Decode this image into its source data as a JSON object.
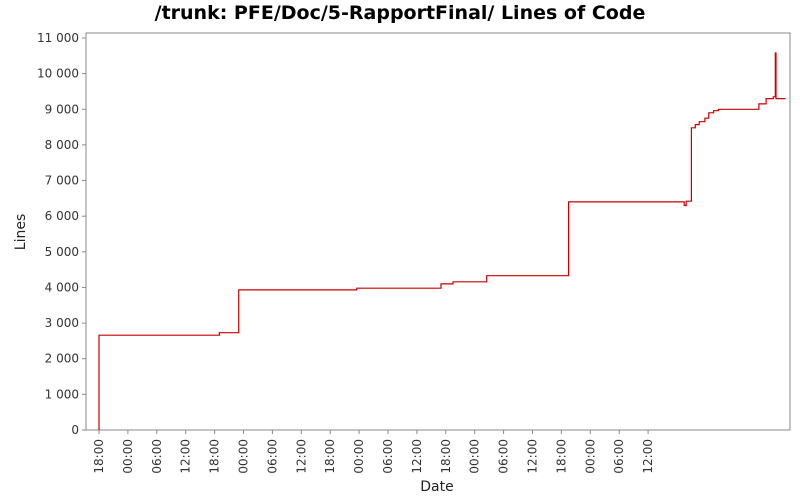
{
  "chart_data": {
    "type": "line",
    "title": "/trunk: PFE/Doc/5-RapportFinal/ Lines of Code",
    "xlabel": "Date",
    "ylabel": "Lines",
    "ylim": [
      0,
      11000
    ],
    "x_tick_labels": [
      "18:00",
      "00:00",
      "06:00",
      "12:00",
      "18:00",
      "00:00",
      "06:00",
      "12:00",
      "18:00",
      "00:00",
      "06:00",
      "12:00",
      "18:00",
      "00:00",
      "06:00",
      "12:00",
      "18:00",
      "00:00",
      "06:00",
      "12:00"
    ],
    "y_tick_labels": [
      "0",
      "1 000",
      "2 000",
      "3 000",
      "4 000",
      "5 000",
      "6 000",
      "7 000",
      "8 000",
      "9 000",
      "10 000",
      "11 000"
    ],
    "y_ticks": [
      0,
      1000,
      2000,
      3000,
      4000,
      5000,
      6000,
      7000,
      8000,
      9000,
      10000,
      11000
    ],
    "x_range_hours": [
      -1.5,
      115.7
    ],
    "grid": false,
    "line_color": "#cc0000",
    "series": [
      {
        "points": [
          [
            0.0,
            0
          ],
          [
            0.0,
            2660
          ],
          [
            25.0,
            2660
          ],
          [
            25.0,
            2730
          ],
          [
            29.0,
            2730
          ],
          [
            29.0,
            3930
          ],
          [
            53.5,
            3930
          ],
          [
            53.5,
            3980
          ],
          [
            71.0,
            3980
          ],
          [
            71.0,
            4100
          ],
          [
            73.5,
            4100
          ],
          [
            73.5,
            4160
          ],
          [
            80.5,
            4160
          ],
          [
            80.5,
            4330
          ],
          [
            97.5,
            4330
          ],
          [
            97.5,
            6400
          ],
          [
            121.5,
            6400
          ],
          [
            121.5,
            6300
          ],
          [
            121.9,
            6300
          ],
          [
            121.9,
            6420
          ],
          [
            123.0,
            6420
          ],
          [
            123.0,
            8480
          ],
          [
            123.8,
            8480
          ],
          [
            123.8,
            8570
          ],
          [
            124.6,
            8570
          ],
          [
            124.6,
            8650
          ],
          [
            125.8,
            8650
          ],
          [
            125.8,
            8750
          ],
          [
            126.6,
            8750
          ],
          [
            126.6,
            8900
          ],
          [
            127.6,
            8900
          ],
          [
            127.6,
            8960
          ],
          [
            128.6,
            8960
          ],
          [
            128.6,
            9000
          ],
          [
            137.0,
            9000
          ],
          [
            137.0,
            9150
          ],
          [
            138.5,
            9150
          ],
          [
            138.5,
            9300
          ],
          [
            140.0,
            9300
          ],
          [
            140.0,
            9350
          ],
          [
            140.4,
            9350
          ],
          [
            140.4,
            10580
          ],
          [
            140.55,
            10580
          ],
          [
            140.55,
            9300
          ],
          [
            142.5,
            9300
          ]
        ]
      }
    ]
  }
}
